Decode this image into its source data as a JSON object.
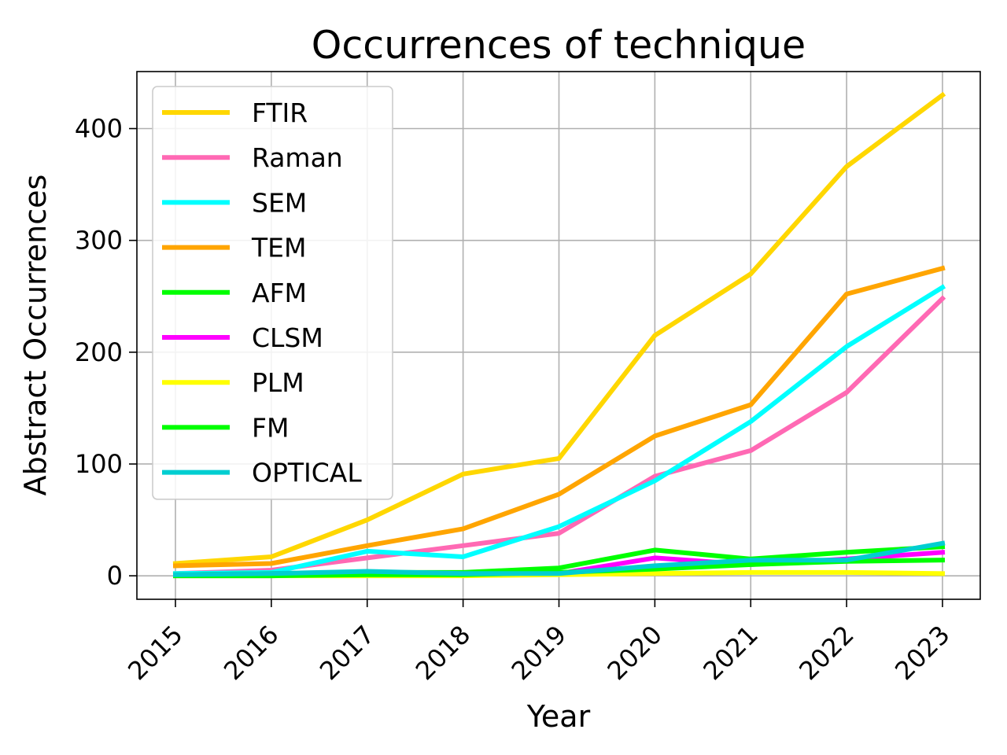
{
  "chart_data": {
    "type": "line",
    "title": "Occurrences of technique",
    "xlabel": "Year",
    "ylabel": "Abstract Occurrences",
    "categories": [
      "2015",
      "2016",
      "2017",
      "2018",
      "2019",
      "2020",
      "2021",
      "2022",
      "2023"
    ],
    "yticks": [
      0,
      100,
      200,
      300,
      400
    ],
    "ylim": [
      -21,
      451
    ],
    "grid": true,
    "legend_position": "top-left",
    "series": [
      {
        "name": "FTIR",
        "color": "#FFD700",
        "values": [
          11,
          17,
          50,
          91,
          105,
          215,
          270,
          366,
          430
        ]
      },
      {
        "name": "Raman",
        "color": "#FF69B4",
        "values": [
          2,
          5,
          16,
          27,
          38,
          89,
          112,
          164,
          248
        ]
      },
      {
        "name": "SEM",
        "color": "#00FFFF",
        "values": [
          2,
          3,
          22,
          17,
          44,
          85,
          138,
          205,
          258
        ]
      },
      {
        "name": "TEM",
        "color": "#FFA500",
        "values": [
          9,
          11,
          27,
          42,
          73,
          125,
          153,
          252,
          275
        ]
      },
      {
        "name": "AFM",
        "color": "#00FF00",
        "values": [
          1,
          2,
          3,
          3,
          7,
          23,
          15,
          21,
          26
        ]
      },
      {
        "name": "CLSM",
        "color": "#FF00FF",
        "values": [
          0,
          0,
          2,
          1,
          2,
          16,
          10,
          15,
          21
        ]
      },
      {
        "name": "PLM",
        "color": "#FFFF00",
        "values": [
          0,
          0,
          0,
          0,
          1,
          2,
          3,
          3,
          2
        ]
      },
      {
        "name": "FM",
        "color": "#00FF00",
        "values": [
          0,
          0,
          1,
          1,
          3,
          6,
          10,
          13,
          14
        ]
      },
      {
        "name": "OPTICAL",
        "color": "#00CED1",
        "values": [
          1,
          2,
          4,
          2,
          2,
          9,
          14,
          14,
          29
        ]
      }
    ]
  }
}
